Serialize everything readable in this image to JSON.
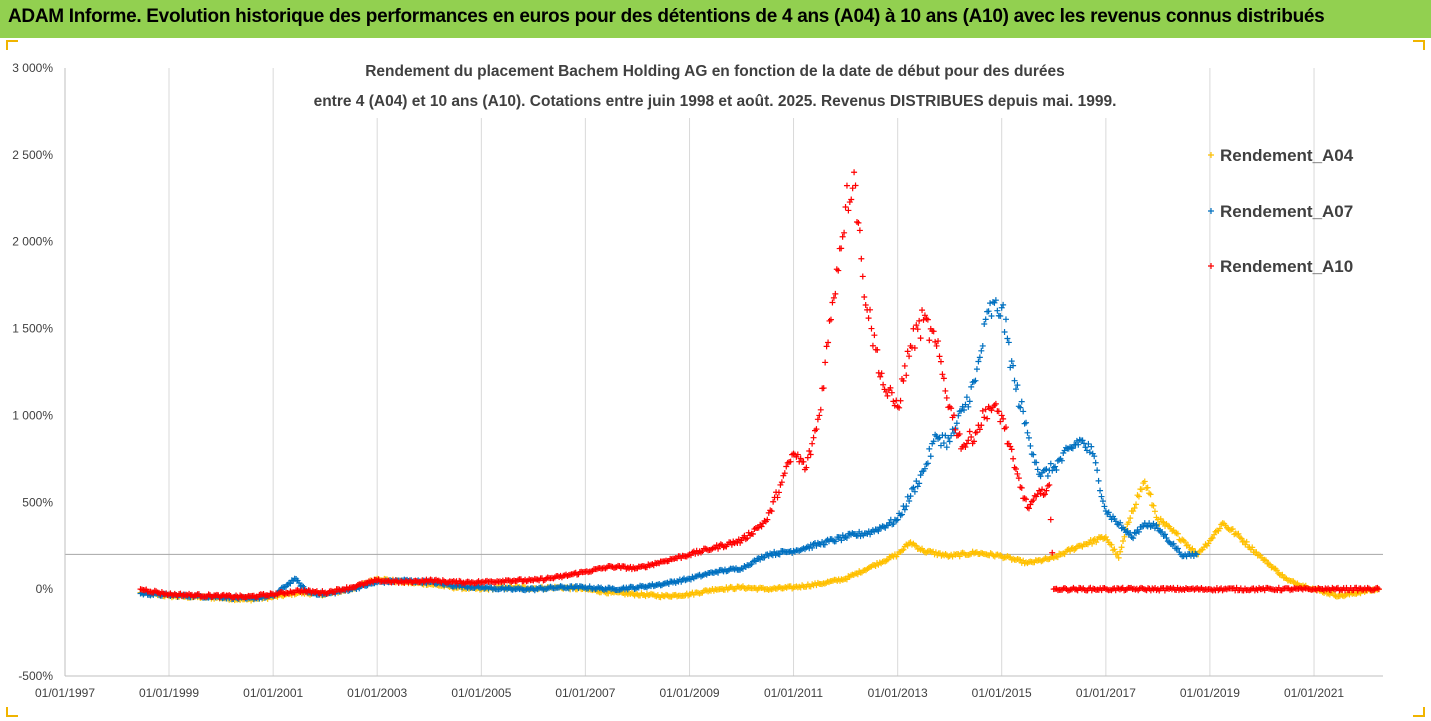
{
  "banner": {
    "text": "ADAM Informe. Evolution historique des performances en euros pour des détentions de 4 ans (A04) à 10 ans (A10) avec les revenus connus distribués"
  },
  "colors": {
    "banner_bg": "#92d050",
    "Rendement_A04": "#ffc000",
    "Rendement_A07": "#0070c0",
    "Rendement_A10": "#ff0000"
  },
  "chart_data": {
    "type": "scatter",
    "title_lines": [
      "Rendement du placement Bachem Holding AG en fonction de la date de début pour des durées",
      "entre 4 (A04) et 10 ans (A10). Cotations entre juin 1998 et août. 2025. Revenus DISTRIBUES depuis mai. 1999."
    ],
    "y_unit": "%",
    "ylim": [
      -500,
      3000
    ],
    "y_ticks": [
      "3 000%",
      "2 500%",
      "2 000%",
      "1 500%",
      "1 000%",
      "500%",
      "0%",
      "-500%"
    ],
    "y_tick_values": [
      3000,
      2500,
      2000,
      1500,
      1000,
      500,
      0,
      -500
    ],
    "xlim": [
      "1997-01-01",
      "2022-04-30"
    ],
    "x_ticks": [
      "01/01/1997",
      "01/01/1999",
      "01/01/2001",
      "01/01/2003",
      "01/01/2005",
      "01/01/2007",
      "01/01/2009",
      "01/01/2011",
      "01/01/2013",
      "01/01/2015",
      "01/01/2017",
      "01/01/2019",
      "01/01/2021"
    ],
    "x_tick_dates": [
      "1997-01-01",
      "1999-01-01",
      "2001-01-01",
      "2003-01-01",
      "2005-01-01",
      "2007-01-01",
      "2009-01-01",
      "2011-01-01",
      "2013-01-01",
      "2015-01-01",
      "2017-01-01",
      "2019-01-01",
      "2021-01-01"
    ],
    "reference_line_y": 200,
    "grid": "vertical lines at x ticks",
    "legend_position": "right",
    "marker": "+",
    "series": [
      {
        "name": "Rendement_A04",
        "points": [
          [
            "1998-06-15",
            -20
          ],
          [
            "1999-01-01",
            -40
          ],
          [
            "1999-07-01",
            -45
          ],
          [
            "2000-01-01",
            -50
          ],
          [
            "2000-07-01",
            -60
          ],
          [
            "2001-01-01",
            -45
          ],
          [
            "2001-07-01",
            -20
          ],
          [
            "2002-01-01",
            -30
          ],
          [
            "2002-07-01",
            0
          ],
          [
            "2003-01-01",
            60
          ],
          [
            "2003-07-01",
            40
          ],
          [
            "2004-01-01",
            30
          ],
          [
            "2004-07-01",
            10
          ],
          [
            "2005-01-01",
            0
          ],
          [
            "2005-07-01",
            10
          ],
          [
            "2006-01-01",
            5
          ],
          [
            "2006-07-01",
            10
          ],
          [
            "2007-01-01",
            0
          ],
          [
            "2007-07-01",
            -20
          ],
          [
            "2008-01-01",
            -30
          ],
          [
            "2008-07-01",
            -40
          ],
          [
            "2009-01-01",
            -30
          ],
          [
            "2009-07-01",
            0
          ],
          [
            "2010-01-01",
            10
          ],
          [
            "2010-07-01",
            0
          ],
          [
            "2011-01-01",
            10
          ],
          [
            "2011-07-01",
            30
          ],
          [
            "2012-01-01",
            60
          ],
          [
            "2012-07-01",
            130
          ],
          [
            "2013-01-01",
            200
          ],
          [
            "2013-04-01",
            270
          ],
          [
            "2013-07-01",
            220
          ],
          [
            "2014-01-01",
            190
          ],
          [
            "2014-07-01",
            210
          ],
          [
            "2015-01-01",
            190
          ],
          [
            "2015-07-01",
            150
          ],
          [
            "2016-01-01",
            180
          ],
          [
            "2016-07-01",
            250
          ],
          [
            "2017-01-01",
            300
          ],
          [
            "2017-04-01",
            180
          ],
          [
            "2017-07-01",
            450
          ],
          [
            "2017-10-01",
            620
          ],
          [
            "2018-01-01",
            400
          ],
          [
            "2018-07-01",
            280
          ],
          [
            "2018-10-01",
            200
          ],
          [
            "2019-01-01",
            280
          ],
          [
            "2019-04-01",
            380
          ],
          [
            "2019-07-01",
            320
          ],
          [
            "2020-01-01",
            180
          ],
          [
            "2020-07-01",
            50
          ],
          [
            "2021-01-01",
            0
          ],
          [
            "2021-07-01",
            -40
          ],
          [
            "2022-01-01",
            -10
          ],
          [
            "2022-04-01",
            0
          ]
        ]
      },
      {
        "name": "Rendement_A07",
        "points": [
          [
            "1998-06-15",
            -25
          ],
          [
            "1999-01-01",
            -35
          ],
          [
            "1999-07-01",
            -40
          ],
          [
            "2000-01-01",
            -45
          ],
          [
            "2000-07-01",
            -55
          ],
          [
            "2001-01-01",
            -40
          ],
          [
            "2001-06-01",
            60
          ],
          [
            "2001-09-01",
            -20
          ],
          [
            "2002-01-01",
            -30
          ],
          [
            "2002-07-01",
            0
          ],
          [
            "2003-01-01",
            40
          ],
          [
            "2003-07-01",
            50
          ],
          [
            "2004-01-01",
            40
          ],
          [
            "2004-07-01",
            20
          ],
          [
            "2005-01-01",
            10
          ],
          [
            "2005-07-01",
            0
          ],
          [
            "2006-01-01",
            0
          ],
          [
            "2006-07-01",
            10
          ],
          [
            "2007-01-01",
            10
          ],
          [
            "2007-07-01",
            0
          ],
          [
            "2008-01-01",
            10
          ],
          [
            "2008-07-01",
            30
          ],
          [
            "2009-01-01",
            60
          ],
          [
            "2009-07-01",
            100
          ],
          [
            "2010-01-01",
            120
          ],
          [
            "2010-07-01",
            200
          ],
          [
            "2011-01-01",
            220
          ],
          [
            "2011-07-01",
            260
          ],
          [
            "2012-01-01",
            300
          ],
          [
            "2012-07-01",
            330
          ],
          [
            "2013-01-01",
            400
          ],
          [
            "2013-07-01",
            680
          ],
          [
            "2013-10-01",
            880
          ],
          [
            "2014-01-01",
            850
          ],
          [
            "2014-07-01",
            1200
          ],
          [
            "2014-10-01",
            1600
          ],
          [
            "2015-01-01",
            1620
          ],
          [
            "2015-04-01",
            1200
          ],
          [
            "2015-07-01",
            900
          ],
          [
            "2015-10-01",
            650
          ],
          [
            "2016-01-01",
            700
          ],
          [
            "2016-07-01",
            860
          ],
          [
            "2016-10-01",
            780
          ],
          [
            "2017-01-01",
            450
          ],
          [
            "2017-07-01",
            300
          ],
          [
            "2017-10-01",
            380
          ],
          [
            "2018-01-01",
            350
          ],
          [
            "2018-07-01",
            190
          ],
          [
            "2018-10-01",
            200
          ]
        ]
      },
      {
        "name": "Rendement_A10",
        "points": [
          [
            "1998-06-15",
            0
          ],
          [
            "1999-01-01",
            -30
          ],
          [
            "1999-07-01",
            -35
          ],
          [
            "2000-01-01",
            -40
          ],
          [
            "2000-07-01",
            -45
          ],
          [
            "2001-01-01",
            -30
          ],
          [
            "2001-07-01",
            -10
          ],
          [
            "2002-01-01",
            -20
          ],
          [
            "2002-07-01",
            10
          ],
          [
            "2003-01-01",
            50
          ],
          [
            "2003-07-01",
            40
          ],
          [
            "2004-01-01",
            50
          ],
          [
            "2004-07-01",
            40
          ],
          [
            "2005-01-01",
            40
          ],
          [
            "2005-07-01",
            50
          ],
          [
            "2006-01-01",
            50
          ],
          [
            "2006-07-01",
            70
          ],
          [
            "2007-01-01",
            100
          ],
          [
            "2007-07-01",
            130
          ],
          [
            "2008-01-01",
            120
          ],
          [
            "2008-07-01",
            160
          ],
          [
            "2009-01-01",
            200
          ],
          [
            "2009-07-01",
            240
          ],
          [
            "2010-01-01",
            280
          ],
          [
            "2010-07-01",
            400
          ],
          [
            "2010-10-01",
            600
          ],
          [
            "2011-01-01",
            780
          ],
          [
            "2011-04-01",
            700
          ],
          [
            "2011-07-01",
            1000
          ],
          [
            "2011-10-01",
            1650
          ],
          [
            "2012-01-01",
            2200
          ],
          [
            "2012-03-01",
            2400
          ],
          [
            "2012-05-01",
            1800
          ],
          [
            "2012-07-01",
            1500
          ],
          [
            "2012-10-01",
            1150
          ],
          [
            "2013-01-01",
            1050
          ],
          [
            "2013-04-01",
            1400
          ],
          [
            "2013-07-01",
            1550
          ],
          [
            "2013-10-01",
            1400
          ],
          [
            "2014-01-01",
            1050
          ],
          [
            "2014-04-01",
            820
          ],
          [
            "2014-07-01",
            900
          ],
          [
            "2014-10-01",
            1050
          ],
          [
            "2015-01-01",
            1000
          ],
          [
            "2015-04-01",
            700
          ],
          [
            "2015-07-01",
            470
          ],
          [
            "2015-10-01",
            550
          ],
          [
            "2015-12-01",
            600
          ],
          [
            "2016-01-01",
            0
          ],
          [
            "2017-01-01",
            0
          ],
          [
            "2018-01-01",
            0
          ],
          [
            "2019-01-01",
            0
          ],
          [
            "2020-01-01",
            0
          ],
          [
            "2021-01-01",
            0
          ],
          [
            "2022-04-01",
            0
          ]
        ]
      }
    ]
  }
}
